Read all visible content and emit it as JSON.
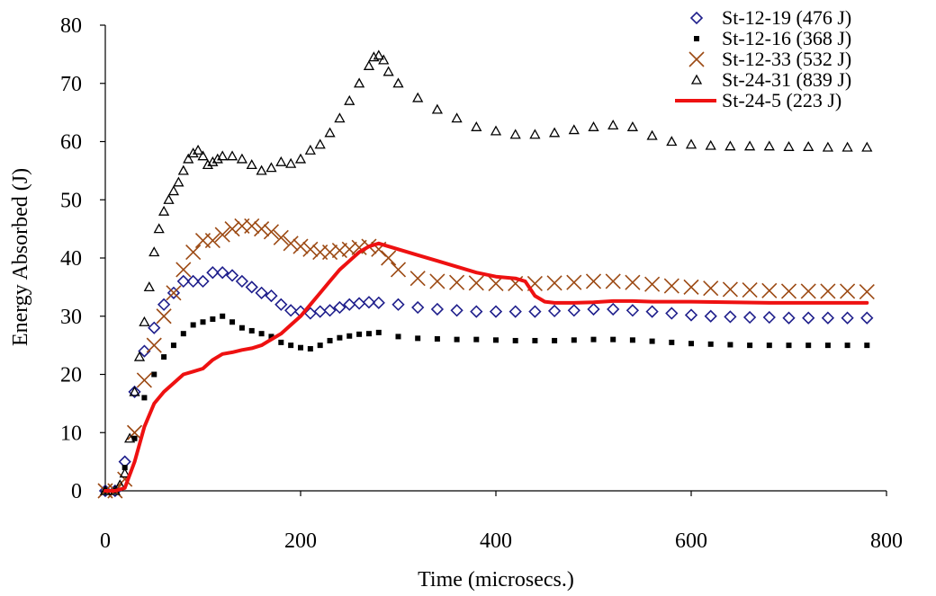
{
  "chart_data": {
    "type": "scatter",
    "title": "",
    "xlabel": "Time (microsecs.)",
    "ylabel": "Energy Absorbed (J)",
    "xlim": [
      0,
      800
    ],
    "ylim": [
      0,
      80
    ],
    "xticks": [
      "0",
      "200",
      "400",
      "600",
      "800"
    ],
    "yticks": [
      "0",
      "10",
      "20",
      "30",
      "40",
      "50",
      "60",
      "70",
      "80"
    ],
    "grid": false,
    "legend_position": "top-right",
    "series": [
      {
        "name": "St-12-19 (476 J)",
        "marker": "diamond-open",
        "color": "#1f1f8c",
        "points": [
          [
            0,
            0
          ],
          [
            10,
            0
          ],
          [
            20,
            5
          ],
          [
            30,
            17
          ],
          [
            40,
            24
          ],
          [
            50,
            28
          ],
          [
            60,
            32
          ],
          [
            70,
            34
          ],
          [
            80,
            36
          ],
          [
            90,
            36
          ],
          [
            100,
            36
          ],
          [
            110,
            37.5
          ],
          [
            120,
            37.5
          ],
          [
            130,
            37
          ],
          [
            140,
            36
          ],
          [
            150,
            35
          ],
          [
            160,
            34
          ],
          [
            170,
            33.5
          ],
          [
            180,
            32
          ],
          [
            190,
            31
          ],
          [
            200,
            30.8
          ],
          [
            210,
            30.5
          ],
          [
            220,
            30.8
          ],
          [
            230,
            31
          ],
          [
            240,
            31.5
          ],
          [
            250,
            32
          ],
          [
            260,
            32.2
          ],
          [
            270,
            32.4
          ],
          [
            280,
            32.3
          ],
          [
            300,
            32
          ],
          [
            320,
            31.5
          ],
          [
            340,
            31.2
          ],
          [
            360,
            31
          ],
          [
            380,
            30.8
          ],
          [
            400,
            30.8
          ],
          [
            420,
            30.8
          ],
          [
            440,
            30.8
          ],
          [
            460,
            30.9
          ],
          [
            480,
            31
          ],
          [
            500,
            31.2
          ],
          [
            520,
            31.2
          ],
          [
            540,
            31
          ],
          [
            560,
            30.8
          ],
          [
            580,
            30.5
          ],
          [
            600,
            30.2
          ],
          [
            620,
            30
          ],
          [
            640,
            29.9
          ],
          [
            660,
            29.8
          ],
          [
            680,
            29.8
          ],
          [
            700,
            29.7
          ],
          [
            720,
            29.7
          ],
          [
            740,
            29.7
          ],
          [
            760,
            29.7
          ],
          [
            780,
            29.7
          ]
        ]
      },
      {
        "name": "St-12-16 (368 J)",
        "marker": "square-filled",
        "color": "#000000",
        "points": [
          [
            0,
            0
          ],
          [
            10,
            0
          ],
          [
            20,
            4
          ],
          [
            30,
            9
          ],
          [
            40,
            16
          ],
          [
            50,
            20
          ],
          [
            60,
            23
          ],
          [
            70,
            25
          ],
          [
            80,
            27
          ],
          [
            90,
            28.5
          ],
          [
            100,
            29
          ],
          [
            110,
            29.5
          ],
          [
            120,
            30
          ],
          [
            130,
            29
          ],
          [
            140,
            28
          ],
          [
            150,
            27.5
          ],
          [
            160,
            27
          ],
          [
            170,
            26.5
          ],
          [
            180,
            25.5
          ],
          [
            190,
            25
          ],
          [
            200,
            24.6
          ],
          [
            210,
            24.4
          ],
          [
            220,
            25
          ],
          [
            230,
            25.8
          ],
          [
            240,
            26.3
          ],
          [
            250,
            26.6
          ],
          [
            260,
            26.9
          ],
          [
            270,
            27
          ],
          [
            280,
            27.2
          ],
          [
            300,
            26.5
          ],
          [
            320,
            26.2
          ],
          [
            340,
            26.1
          ],
          [
            360,
            26
          ],
          [
            380,
            26
          ],
          [
            400,
            25.9
          ],
          [
            420,
            25.8
          ],
          [
            440,
            25.8
          ],
          [
            460,
            25.8
          ],
          [
            480,
            25.9
          ],
          [
            500,
            26
          ],
          [
            520,
            26
          ],
          [
            540,
            25.9
          ],
          [
            560,
            25.7
          ],
          [
            580,
            25.5
          ],
          [
            600,
            25.3
          ],
          [
            620,
            25.2
          ],
          [
            640,
            25.1
          ],
          [
            660,
            25
          ],
          [
            680,
            25
          ],
          [
            700,
            25
          ],
          [
            720,
            25
          ],
          [
            740,
            25
          ],
          [
            760,
            25
          ],
          [
            780,
            25
          ]
        ]
      },
      {
        "name": "St-12-33 (532 J)",
        "marker": "x",
        "color": "#9c4a14",
        "points": [
          [
            0,
            0
          ],
          [
            10,
            0
          ],
          [
            20,
            2
          ],
          [
            30,
            10
          ],
          [
            40,
            19
          ],
          [
            50,
            25
          ],
          [
            60,
            30
          ],
          [
            70,
            34
          ],
          [
            80,
            38
          ],
          [
            90,
            41
          ],
          [
            100,
            43
          ],
          [
            110,
            43
          ],
          [
            120,
            44
          ],
          [
            130,
            45
          ],
          [
            140,
            45.5
          ],
          [
            150,
            45.5
          ],
          [
            160,
            45
          ],
          [
            170,
            44.5
          ],
          [
            180,
            43.5
          ],
          [
            190,
            42.5
          ],
          [
            200,
            42
          ],
          [
            210,
            41.5
          ],
          [
            220,
            41
          ],
          [
            230,
            41
          ],
          [
            240,
            41.3
          ],
          [
            250,
            41.5
          ],
          [
            260,
            41.8
          ],
          [
            270,
            42
          ],
          [
            280,
            41.5
          ],
          [
            290,
            40
          ],
          [
            300,
            38
          ],
          [
            320,
            36.5
          ],
          [
            340,
            36
          ],
          [
            360,
            35.8
          ],
          [
            380,
            35.7
          ],
          [
            400,
            35.6
          ],
          [
            420,
            35.6
          ],
          [
            440,
            35.6
          ],
          [
            460,
            35.7
          ],
          [
            480,
            35.8
          ],
          [
            500,
            36
          ],
          [
            520,
            36
          ],
          [
            540,
            35.8
          ],
          [
            560,
            35.5
          ],
          [
            580,
            35.2
          ],
          [
            600,
            35
          ],
          [
            620,
            34.8
          ],
          [
            640,
            34.6
          ],
          [
            660,
            34.5
          ],
          [
            680,
            34.4
          ],
          [
            700,
            34.3
          ],
          [
            720,
            34.3
          ],
          [
            740,
            34.3
          ],
          [
            760,
            34.3
          ],
          [
            780,
            34.2
          ]
        ]
      },
      {
        "name": "St-24-31 (839 J)",
        "marker": "triangle-open",
        "color": "#000000",
        "points": [
          [
            0,
            0
          ],
          [
            10,
            0
          ],
          [
            15,
            1
          ],
          [
            20,
            3
          ],
          [
            25,
            9
          ],
          [
            30,
            17
          ],
          [
            35,
            23
          ],
          [
            40,
            29
          ],
          [
            45,
            35
          ],
          [
            50,
            41
          ],
          [
            55,
            45
          ],
          [
            60,
            48
          ],
          [
            65,
            50
          ],
          [
            70,
            51.5
          ],
          [
            75,
            53
          ],
          [
            80,
            55
          ],
          [
            85,
            57
          ],
          [
            90,
            58
          ],
          [
            95,
            58.5
          ],
          [
            100,
            57.5
          ],
          [
            105,
            56
          ],
          [
            110,
            56.5
          ],
          [
            115,
            57
          ],
          [
            120,
            57.5
          ],
          [
            130,
            57.5
          ],
          [
            140,
            57
          ],
          [
            150,
            56
          ],
          [
            160,
            55
          ],
          [
            170,
            55.5
          ],
          [
            180,
            56.5
          ],
          [
            190,
            56.2
          ],
          [
            200,
            57
          ],
          [
            210,
            58.5
          ],
          [
            220,
            59.5
          ],
          [
            230,
            61.5
          ],
          [
            240,
            64
          ],
          [
            250,
            67
          ],
          [
            260,
            70
          ],
          [
            270,
            73
          ],
          [
            275,
            74.5
          ],
          [
            280,
            74.8
          ],
          [
            285,
            74
          ],
          [
            290,
            72
          ],
          [
            300,
            70
          ],
          [
            320,
            67.5
          ],
          [
            340,
            65.5
          ],
          [
            360,
            64
          ],
          [
            380,
            62.5
          ],
          [
            400,
            61.8
          ],
          [
            420,
            61.2
          ],
          [
            440,
            61.2
          ],
          [
            460,
            61.5
          ],
          [
            480,
            62
          ],
          [
            500,
            62.5
          ],
          [
            520,
            62.8
          ],
          [
            540,
            62.5
          ],
          [
            560,
            61
          ],
          [
            580,
            60
          ],
          [
            600,
            59.5
          ],
          [
            620,
            59.3
          ],
          [
            640,
            59.2
          ],
          [
            660,
            59.2
          ],
          [
            680,
            59.2
          ],
          [
            700,
            59.1
          ],
          [
            720,
            59.1
          ],
          [
            740,
            59
          ],
          [
            760,
            59
          ],
          [
            780,
            59
          ]
        ]
      },
      {
        "name": "St-24-5 (223 J)",
        "marker": "line",
        "color": "#ee1111",
        "points": [
          [
            0,
            0
          ],
          [
            10,
            0
          ],
          [
            20,
            0.5
          ],
          [
            30,
            5
          ],
          [
            40,
            11
          ],
          [
            50,
            15
          ],
          [
            60,
            17
          ],
          [
            70,
            18.5
          ],
          [
            80,
            20
          ],
          [
            90,
            20.5
          ],
          [
            100,
            21
          ],
          [
            110,
            22.5
          ],
          [
            120,
            23.5
          ],
          [
            130,
            23.8
          ],
          [
            140,
            24.2
          ],
          [
            150,
            24.5
          ],
          [
            160,
            25
          ],
          [
            170,
            26
          ],
          [
            180,
            27
          ],
          [
            190,
            28.5
          ],
          [
            200,
            30
          ],
          [
            210,
            32
          ],
          [
            220,
            34
          ],
          [
            230,
            36
          ],
          [
            240,
            38
          ],
          [
            250,
            39.5
          ],
          [
            260,
            41
          ],
          [
            270,
            42
          ],
          [
            280,
            42.5
          ],
          [
            290,
            42
          ],
          [
            300,
            41.5
          ],
          [
            320,
            40.5
          ],
          [
            340,
            39.5
          ],
          [
            360,
            38.5
          ],
          [
            380,
            37.5
          ],
          [
            400,
            36.8
          ],
          [
            420,
            36.5
          ],
          [
            430,
            36
          ],
          [
            440,
            33.5
          ],
          [
            450,
            32.5
          ],
          [
            460,
            32.3
          ],
          [
            480,
            32.3
          ],
          [
            500,
            32.4
          ],
          [
            520,
            32.6
          ],
          [
            540,
            32.6
          ],
          [
            560,
            32.5
          ],
          [
            600,
            32.5
          ],
          [
            640,
            32.4
          ],
          [
            680,
            32.3
          ],
          [
            720,
            32.3
          ],
          [
            760,
            32.3
          ],
          [
            780,
            32.3
          ]
        ]
      }
    ]
  }
}
